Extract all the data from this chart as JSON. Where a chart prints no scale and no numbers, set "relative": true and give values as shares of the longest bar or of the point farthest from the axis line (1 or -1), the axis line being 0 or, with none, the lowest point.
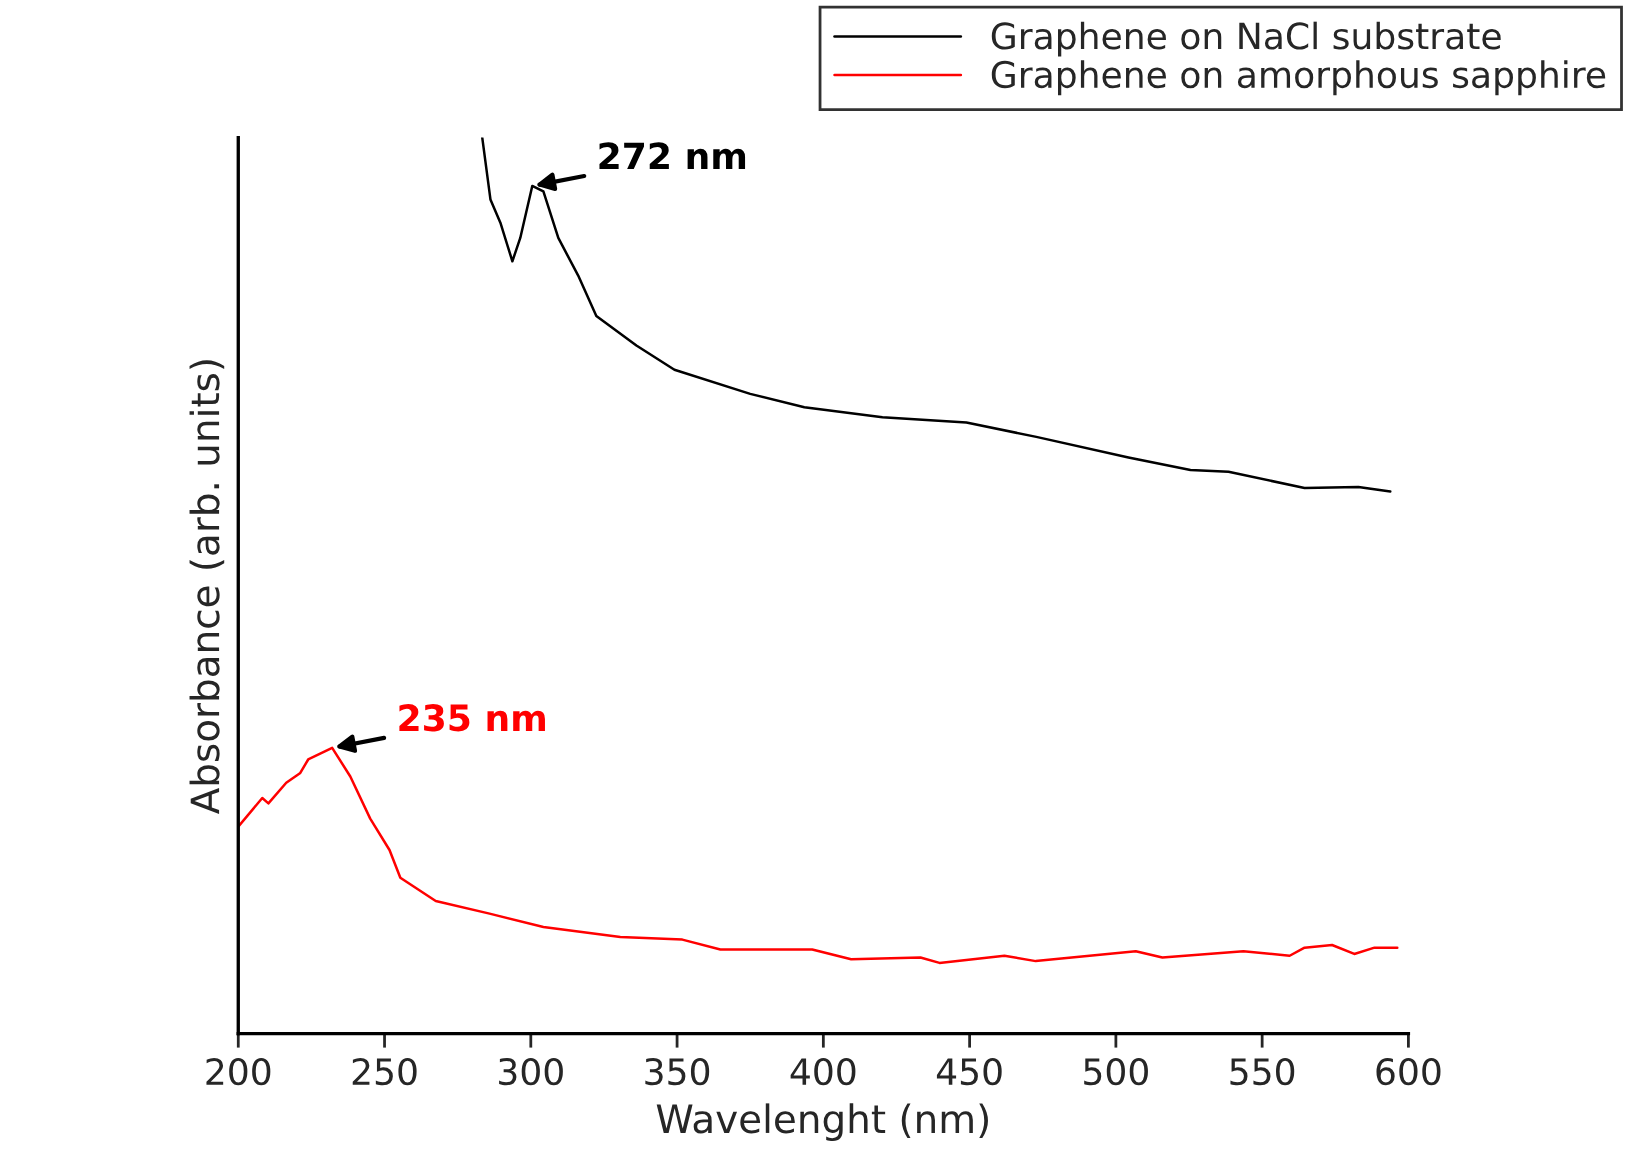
{
  "chart_data": {
    "type": "line",
    "relative": true,
    "xlabel": "Wavelenght (nm)",
    "ylabel": "Absorbance (arb. units)",
    "xlim": [
      200,
      600
    ],
    "xticks": [
      200,
      250,
      300,
      350,
      400,
      450,
      500,
      550,
      600
    ],
    "tick_labels": "x",
    "legend": "top right",
    "grid": false,
    "series": [
      {
        "name": "Graphene on NaCl substrate",
        "color": "#000000",
        "x": [
          283.4,
          286.2,
          289.6,
          293.7,
          296.4,
          300.5,
          304.3,
          309.4,
          316.2,
          322.4,
          336.1,
          349.1,
          375.0,
          393.5,
          420.2,
          448.9,
          472.8,
          504.3,
          525.5,
          538.5,
          564.5,
          582.9,
          593.8
        ],
        "values": [
          1.0,
          0.931,
          0.905,
          0.862,
          0.888,
          0.946,
          0.94,
          0.888,
          0.846,
          0.801,
          0.768,
          0.741,
          0.714,
          0.699,
          0.688,
          0.682,
          0.666,
          0.643,
          0.629,
          0.627,
          0.609,
          0.61,
          0.605
        ]
      },
      {
        "name": "Graphene on amorphous sapphire",
        "color": "#ff0000",
        "x": [
          200,
          208.2,
          210.3,
          216.4,
          221.2,
          223.9,
          228.0,
          232.1,
          238.3,
          245.1,
          251.7,
          255.4,
          267.5,
          285.9,
          304.3,
          330.6,
          351.8,
          364.8,
          396.2,
          409.5,
          433.2,
          439.7,
          461.9,
          472.6,
          506.8,
          515.9,
          543.6,
          559.4,
          564.5,
          573.9,
          581.5,
          588.4,
          596.2
        ],
        "values": [
          0.231,
          0.263,
          0.257,
          0.28,
          0.291,
          0.306,
          0.3125,
          0.319,
          0.287,
          0.24,
          0.205,
          0.174,
          0.148,
          0.134,
          0.119,
          0.108,
          0.105,
          0.094,
          0.094,
          0.083,
          0.085,
          0.079,
          0.087,
          0.081,
          0.092,
          0.085,
          0.092,
          0.087,
          0.096,
          0.099,
          0.089,
          0.096,
          0.096
        ]
      }
    ],
    "annotations": [
      {
        "text": "272 nm",
        "x": 300.5,
        "y": 0.946
      },
      {
        "text": "235 nm",
        "x": 232.1,
        "y": 0.319
      }
    ]
  }
}
